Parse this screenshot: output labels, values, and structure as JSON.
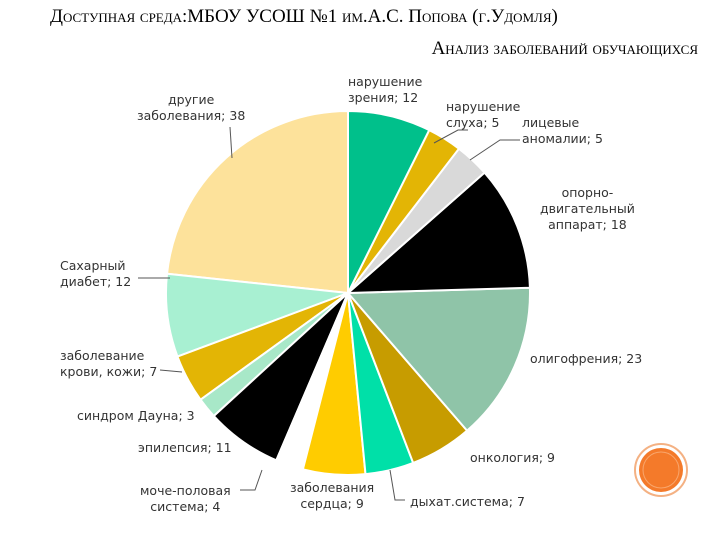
{
  "chart_data": {
    "type": "pie",
    "title": "Доступная среда:МБОУ УСОШ №1 им.А.С. Попова (г.Удомля)",
    "subtitle": "Анализ заболеваний обучающихся",
    "values": [
      12,
      5,
      5,
      18,
      23,
      9,
      7,
      9,
      4,
      11,
      3,
      7,
      12,
      38
    ],
    "value_labels": [
      "нарушение\nзрения; 12",
      "нарушение\nслуха; 5",
      "лицевые\nаномалии; 5",
      "опорно-\nдвигательный\nаппарат; 18",
      "олигофрения; 23",
      "онкология; 9",
      "дыхат.система; 7",
      "заболевания\nсердца; 9",
      "моче-половая\nсистема; 4",
      "эпилепсия; 11",
      "синдром Дауна; 3",
      "заболевание\nкрови, кожи; 7",
      "Сахарный\nдиабет; 12",
      "другие\nзаболевания; 38"
    ],
    "colors": [
      "#00c08b",
      "#e3b505",
      "#d9d9d9",
      "#000000",
      "#8fc4a8",
      "#c79c00",
      "#00e0a8",
      "#ffcc00",
      "#ffffff",
      "#000000",
      "#a8e8c8",
      "#e3b505",
      "#a8f0d2",
      "#fde29b"
    ]
  }
}
